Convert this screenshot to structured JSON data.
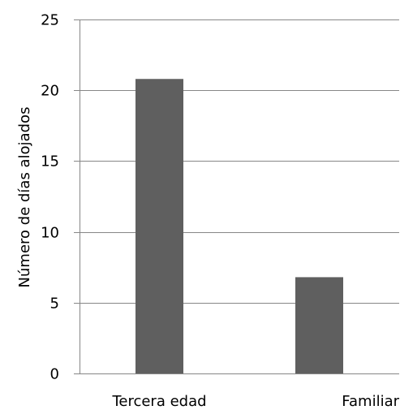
{
  "chart_data": {
    "type": "bar",
    "categories": [
      "Tercera edad",
      "Familiar"
    ],
    "values": [
      20.8,
      6.8
    ],
    "title": "",
    "xlabel": "",
    "ylabel": "Número de días alojados",
    "ylim": [
      0,
      25
    ],
    "yticks": [
      "0",
      "5",
      "10",
      "15",
      "20",
      "25"
    ],
    "grid": true,
    "legend": "none",
    "bar_color": "#5f5f5f",
    "grid_color": "#878787",
    "axis_color": "#878787"
  }
}
